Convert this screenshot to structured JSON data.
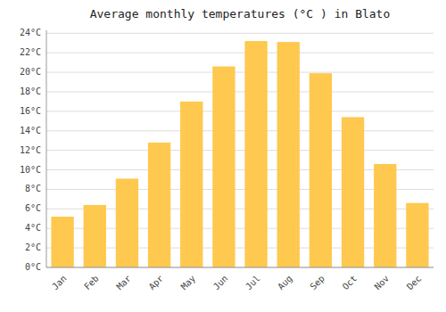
{
  "chart_data": {
    "type": "bar",
    "title": "Average monthly temperatures (°C ) in Blato",
    "categories": [
      "Jan",
      "Feb",
      "Mar",
      "Apr",
      "May",
      "Jun",
      "Jul",
      "Aug",
      "Sep",
      "Oct",
      "Nov",
      "Dec"
    ],
    "values": [
      5.2,
      6.4,
      9.1,
      12.8,
      17.0,
      20.6,
      23.2,
      23.1,
      19.9,
      15.4,
      10.6,
      6.6
    ],
    "color": "#FFC84E",
    "ylim": [
      0,
      24.3
    ],
    "yticks": [
      {
        "value": 0,
        "label": "0°C"
      },
      {
        "value": 2,
        "label": "2°C"
      },
      {
        "value": 4,
        "label": "4°C"
      },
      {
        "value": 6,
        "label": "6°C"
      },
      {
        "value": 8,
        "label": "8°C"
      },
      {
        "value": 10,
        "label": "10°C"
      },
      {
        "value": 12,
        "label": "12°C"
      },
      {
        "value": 14,
        "label": "14°C"
      },
      {
        "value": 16,
        "label": "16°C"
      },
      {
        "value": 18,
        "label": "18°C"
      },
      {
        "value": 20,
        "label": "20°C"
      },
      {
        "value": 22,
        "label": "22°C"
      },
      {
        "value": 24,
        "label": "24°C"
      }
    ],
    "grid": true
  }
}
